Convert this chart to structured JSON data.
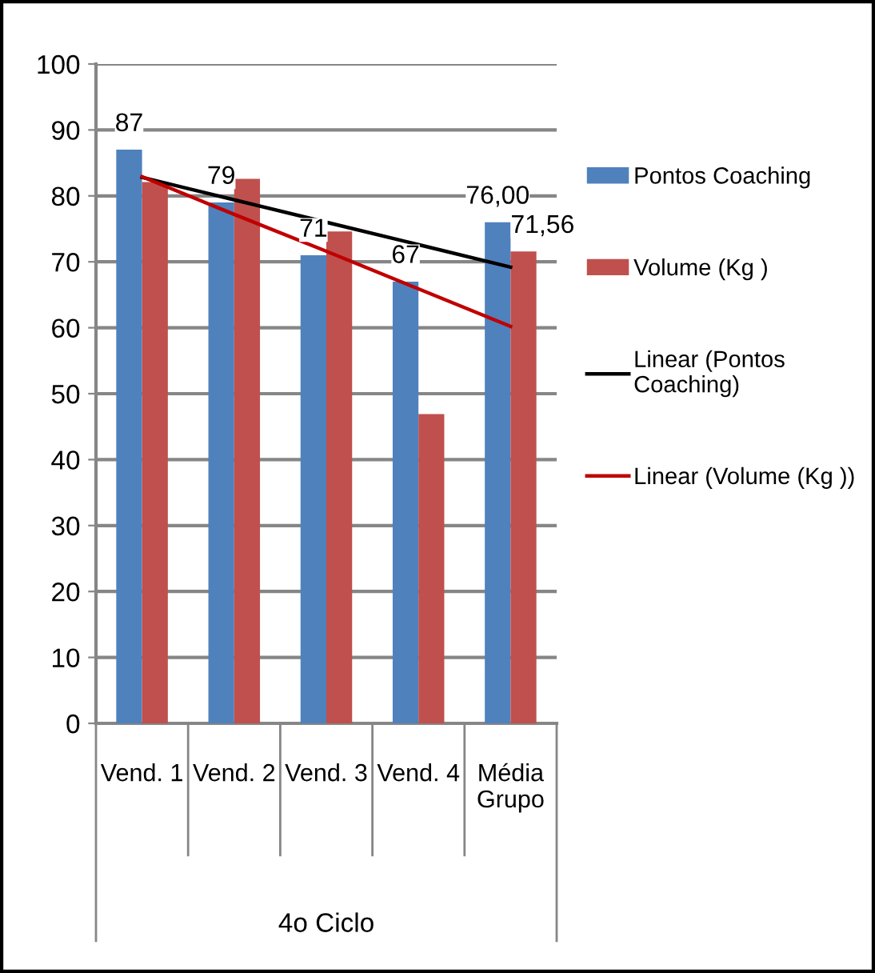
{
  "chart_data": {
    "type": "bar",
    "categories": [
      "Vend. 1",
      "Vend. 2",
      "Vend. 3",
      "Vend. 4",
      "Média\nGrupo"
    ],
    "xlabel": "4o Ciclo",
    "series": [
      {
        "name": "Pontos Coaching",
        "color": "#4f81bd",
        "values": [
          87,
          79,
          71,
          67,
          76
        ],
        "value_labels": [
          "87",
          "79",
          "71",
          "67",
          "76,00"
        ]
      },
      {
        "name": "Volume (Kg )",
        "color": "#c0504d",
        "values": [
          82.1,
          82.6,
          74.6,
          46.9,
          71.56
        ],
        "value_labels": [
          null,
          null,
          null,
          null,
          "71,56"
        ]
      },
      {
        "name": "Linear (Pontos\nCoaching)",
        "type": "line",
        "color": "#000000",
        "values": [
          82.8,
          79.4,
          76.0,
          72.6,
          69.2
        ]
      },
      {
        "name": "Linear (Volume (Kg ))",
        "type": "line",
        "color": "#c00000",
        "values": [
          82.9,
          77.2,
          71.6,
          65.9,
          60.2
        ]
      }
    ],
    "ylim": [
      0,
      100
    ],
    "yticks": [
      0,
      10,
      20,
      30,
      40,
      50,
      60,
      70,
      80,
      90,
      100
    ],
    "grid": "y",
    "legend": "right"
  }
}
